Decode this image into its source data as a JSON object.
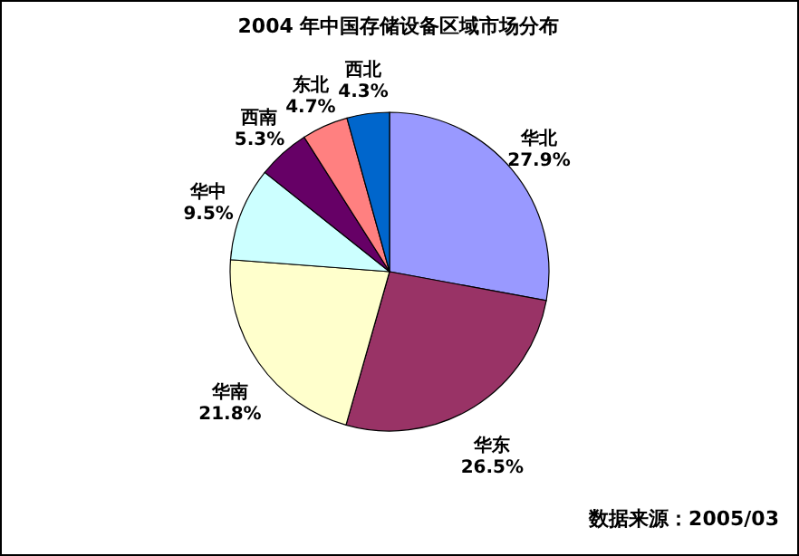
{
  "chart_data": {
    "type": "pie",
    "title": "2004 年中国存储设备区域市场分布",
    "categories": [
      "华北",
      "华东",
      "华南",
      "华中",
      "西南",
      "东北",
      "西北"
    ],
    "values": [
      27.9,
      26.5,
      21.8,
      9.5,
      5.3,
      4.7,
      4.3
    ],
    "value_labels": [
      "27.9%",
      "26.5%",
      "21.8%",
      "9.5%",
      "5.3%",
      "4.7%",
      "4.3%"
    ],
    "colors": [
      "#9999ff",
      "#993366",
      "#ffffcc",
      "#ccffff",
      "#660066",
      "#ff8080",
      "#0066cc"
    ],
    "annotations": [
      "数据来源：2005/03"
    ]
  }
}
